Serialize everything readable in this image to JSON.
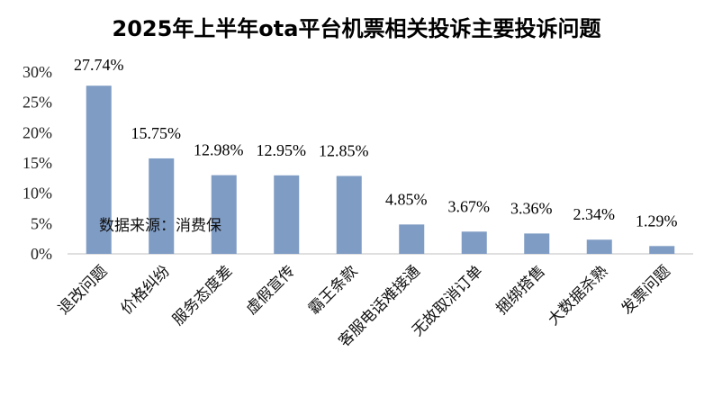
{
  "chart_data": {
    "type": "bar",
    "title": "2025年上半年ota平台机票相关投诉主要投诉问题",
    "categories": [
      "退改问题",
      "价格纠纷",
      "服务态度差",
      "虚假宣传",
      "霸王条款",
      "客服电话难接通",
      "无故取消订单",
      "捆绑搭售",
      "大数据杀熟",
      "发票问题"
    ],
    "values": [
      27.74,
      15.75,
      12.98,
      12.95,
      12.85,
      4.85,
      3.67,
      3.36,
      2.34,
      1.29
    ],
    "value_labels": [
      "27.74%",
      "15.75%",
      "12.98%",
      "12.95%",
      "12.85%",
      "4.85%",
      "3.67%",
      "3.36%",
      "2.34%",
      "1.29%"
    ],
    "ylim": [
      0,
      30
    ],
    "yticks": [
      "0%",
      "5%",
      "10%",
      "15%",
      "20%",
      "25%",
      "30%"
    ],
    "ytick_values": [
      0,
      5,
      10,
      15,
      20,
      25,
      30
    ],
    "annotation": "数据来源：消费保",
    "bar_color": "#7F9CC4",
    "grid": false,
    "xlabel": "",
    "ylabel": ""
  }
}
